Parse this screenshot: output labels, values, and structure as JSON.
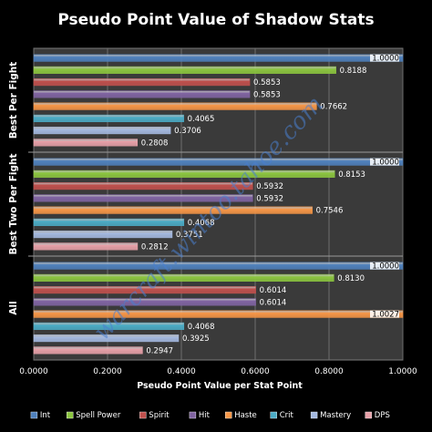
{
  "chart_data": {
    "type": "bar",
    "orientation": "horizontal",
    "title": "Pseudo Point Value of Shadow Stats",
    "xlabel": "Pseudo Point Value per Stat Point",
    "ylabel": "",
    "xlim": [
      0,
      1.0
    ],
    "x_ticks": [
      "0.0000",
      "0.2000",
      "0.4000",
      "0.6000",
      "0.8000",
      "1.0000"
    ],
    "grid": true,
    "legend_position": "bottom",
    "groups": [
      "Best Per Fight",
      "Best Two Per Fight",
      "All"
    ],
    "series": [
      {
        "name": "Int",
        "color": "#4f81bd",
        "values": [
          1.0,
          1.0,
          1.0
        ],
        "labels": [
          "1.0000",
          "1.0000",
          "1.0000"
        ]
      },
      {
        "name": "Spell Power",
        "color": "#8cc63f",
        "values": [
          0.8188,
          0.8153,
          0.813
        ],
        "labels": [
          "0.8188",
          "0.8153",
          "0.8130"
        ]
      },
      {
        "name": "Spirit",
        "color": "#c0504d",
        "values": [
          0.5853,
          0.5932,
          0.6014
        ],
        "labels": [
          "0.5853",
          "0.5932",
          "0.6014"
        ]
      },
      {
        "name": "Hit",
        "color": "#8064a2",
        "values": [
          0.5853,
          0.5932,
          0.6014
        ],
        "labels": [
          "0.5853",
          "0.5932",
          "0.6014"
        ]
      },
      {
        "name": "Haste",
        "color": "#f79646",
        "values": [
          0.7662,
          0.7546,
          1.0027
        ],
        "labels": [
          "0.7662",
          "0.7546",
          "1.0027"
        ]
      },
      {
        "name": "Crit",
        "color": "#4bacc6",
        "values": [
          0.4065,
          0.4068,
          0.4068
        ],
        "labels": [
          "0.4065",
          "0.4068",
          "0.4068"
        ]
      },
      {
        "name": "Mastery",
        "color": "#a4b9e0",
        "values": [
          0.3706,
          0.3751,
          0.3925
        ],
        "labels": [
          "0.3706",
          "0.3751",
          "0.3925"
        ]
      },
      {
        "name": "DPS",
        "color": "#e7a0a8",
        "values": [
          0.2808,
          0.2812,
          0.2947
        ],
        "labels": [
          "0.2808",
          "0.2812",
          "0.2947"
        ]
      }
    ],
    "watermark": "warcraft.wintoo.tahoe.com"
  }
}
